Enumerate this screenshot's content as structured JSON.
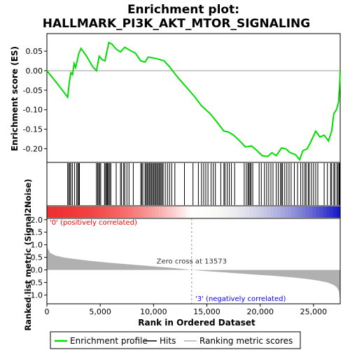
{
  "title_line1": "Enrichment plot:",
  "title_line2": "HALLMARK_PI3K_AKT_MTOR_SIGNALING",
  "colors": {
    "profile": "#00dd00",
    "hits": "#000000",
    "metric": "#b0b0b0",
    "pos_label": "#ff0000",
    "neg_label": "#0000ff"
  },
  "chart_data": {
    "type": "line",
    "x_range": [
      0,
      27500
    ],
    "es_panel": {
      "ylabel": "Enrichment score (ES)",
      "ylim": [
        -0.235,
        0.095
      ],
      "yticks": [
        {
          "v": 0.05,
          "label": "0.05"
        },
        {
          "v": 0.0,
          "label": "0.00"
        },
        {
          "v": -0.05,
          "label": "-0.05"
        },
        {
          "v": -0.1,
          "label": "-0.10"
        },
        {
          "v": -0.15,
          "label": "-0.15"
        },
        {
          "v": -0.2,
          "label": "-0.20"
        }
      ],
      "points": [
        [
          0,
          0.0
        ],
        [
          1000,
          -0.034
        ],
        [
          1950,
          -0.068
        ],
        [
          2100,
          -0.03
        ],
        [
          2250,
          -0.005
        ],
        [
          2400,
          -0.01
        ],
        [
          2550,
          0.018
        ],
        [
          2700,
          0.008
        ],
        [
          3000,
          0.045
        ],
        [
          3200,
          0.057
        ],
        [
          3700,
          0.038
        ],
        [
          4300,
          0.01
        ],
        [
          4650,
          0.0
        ],
        [
          4900,
          0.037
        ],
        [
          5200,
          0.028
        ],
        [
          5450,
          0.025
        ],
        [
          5800,
          0.072
        ],
        [
          6100,
          0.068
        ],
        [
          6500,
          0.055
        ],
        [
          6900,
          0.048
        ],
        [
          7300,
          0.06
        ],
        [
          7800,
          0.052
        ],
        [
          8300,
          0.045
        ],
        [
          8800,
          0.025
        ],
        [
          9200,
          0.022
        ],
        [
          9500,
          0.035
        ],
        [
          9900,
          0.033
        ],
        [
          10400,
          0.03
        ],
        [
          11000,
          0.025
        ],
        [
          11500,
          0.01
        ],
        [
          12200,
          -0.015
        ],
        [
          13000,
          -0.04
        ],
        [
          13800,
          -0.065
        ],
        [
          14500,
          -0.09
        ],
        [
          15300,
          -0.11
        ],
        [
          15900,
          -0.13
        ],
        [
          16600,
          -0.155
        ],
        [
          17000,
          -0.157
        ],
        [
          17500,
          -0.165
        ],
        [
          18000,
          -0.178
        ],
        [
          18600,
          -0.195
        ],
        [
          19200,
          -0.193
        ],
        [
          19700,
          -0.205
        ],
        [
          20200,
          -0.218
        ],
        [
          20700,
          -0.22
        ],
        [
          21100,
          -0.21
        ],
        [
          21500,
          -0.218
        ],
        [
          22000,
          -0.198
        ],
        [
          22400,
          -0.2
        ],
        [
          22800,
          -0.21
        ],
        [
          23300,
          -0.215
        ],
        [
          23700,
          -0.228
        ],
        [
          24000,
          -0.205
        ],
        [
          24400,
          -0.2
        ],
        [
          24700,
          -0.185
        ],
        [
          25200,
          -0.155
        ],
        [
          25600,
          -0.17
        ],
        [
          26000,
          -0.165
        ],
        [
          26400,
          -0.18
        ],
        [
          26700,
          -0.155
        ],
        [
          26900,
          -0.11
        ],
        [
          27150,
          -0.1
        ],
        [
          27350,
          -0.08
        ],
        [
          27450,
          -0.035
        ],
        [
          27500,
          0.0
        ]
      ]
    },
    "hits": [
      1950,
      2050,
      2150,
      2250,
      2400,
      2600,
      2800,
      2900,
      3000,
      3050,
      4650,
      4750,
      4850,
      4950,
      5050,
      5400,
      5500,
      5600,
      5650,
      5700,
      5800,
      5900,
      6000,
      6500,
      6900,
      7000,
      7200,
      7300,
      7500,
      7700,
      8100,
      8800,
      8900,
      9000,
      9200,
      9300,
      9400,
      9500,
      9600,
      9700,
      9800,
      9900,
      10000,
      10100,
      10200,
      10300,
      10400,
      10500,
      10600,
      10700,
      10800,
      10900,
      11100,
      11300,
      11500,
      11700,
      12000,
      12900,
      13700,
      14200,
      14500,
      14700,
      14900,
      15100,
      15400,
      15600,
      15800,
      16300,
      16600,
      16700,
      16900,
      17100,
      17300,
      17600,
      18500,
      18700,
      18850,
      18950,
      19050,
      19150,
      19300,
      19900,
      20100,
      20400,
      20600,
      20800,
      21000,
      21200,
      21500,
      21700,
      21900,
      22000,
      22100,
      22300,
      22500,
      22700,
      22900,
      23200,
      23500,
      23800,
      24000,
      24200,
      24300,
      24500,
      24600,
      24800,
      25000,
      25200,
      25400,
      26000,
      26300,
      26600,
      26700,
      26900,
      27000,
      27200,
      27300,
      27400,
      27450
    ],
    "metric_panel": {
      "ylabel": "Ranked list metric (Signal2Noise)",
      "xlabel": "Rank in Ordered Dataset",
      "ylim": [
        -1.35,
        2.05
      ],
      "yticks": [
        {
          "v": 2.0,
          "label": "2.0"
        },
        {
          "v": 1.5,
          "label": "1.5"
        },
        {
          "v": 1.0,
          "label": "1.0"
        },
        {
          "v": 0.5,
          "label": "0.5"
        },
        {
          "v": 0.0,
          "label": "0.0"
        },
        {
          "v": -0.5,
          "label": "-0.5"
        },
        {
          "v": -1.0,
          "label": "-1.0"
        }
      ],
      "xticks": [
        {
          "v": 0,
          "label": "0"
        },
        {
          "v": 5000,
          "label": "5,000"
        },
        {
          "v": 10000,
          "label": "10,000"
        },
        {
          "v": 15000,
          "label": "15,000"
        },
        {
          "v": 20000,
          "label": "20,000"
        },
        {
          "v": 25000,
          "label": "25,000"
        }
      ],
      "points": [
        [
          0,
          1.08
        ],
        [
          80,
          0.85
        ],
        [
          300,
          0.68
        ],
        [
          800,
          0.57
        ],
        [
          1500,
          0.5
        ],
        [
          2500,
          0.44
        ],
        [
          4000,
          0.36
        ],
        [
          6000,
          0.28
        ],
        [
          8000,
          0.21
        ],
        [
          10000,
          0.14
        ],
        [
          12000,
          0.07
        ],
        [
          13573,
          0.0
        ],
        [
          15000,
          -0.05
        ],
        [
          17000,
          -0.11
        ],
        [
          19000,
          -0.17
        ],
        [
          21000,
          -0.23
        ],
        [
          23000,
          -0.3
        ],
        [
          24500,
          -0.37
        ],
        [
          25500,
          -0.43
        ],
        [
          26300,
          -0.5
        ],
        [
          26900,
          -0.6
        ],
        [
          27200,
          -0.7
        ],
        [
          27380,
          -0.85
        ],
        [
          27450,
          -1.05
        ],
        [
          27500,
          -1.3
        ]
      ],
      "zero_cross": 13573,
      "zero_cross_label": "Zero cross at 13573",
      "pos_label": "'0' (positively correlated)",
      "neg_label": "'3' (negatively correlated)"
    },
    "legend": [
      {
        "label": "Enrichment profile",
        "kind": "profile"
      },
      {
        "label": "Hits",
        "kind": "hits"
      },
      {
        "label": "Ranking metric scores",
        "kind": "metric"
      }
    ]
  }
}
